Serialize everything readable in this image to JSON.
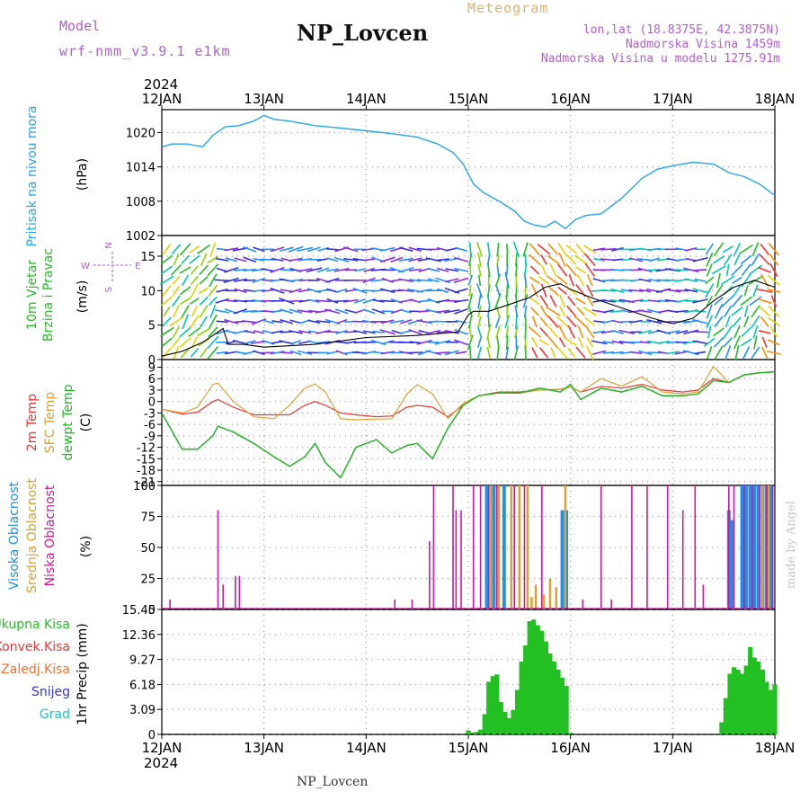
{
  "header": {
    "model_label": "Model",
    "model_name": "wrf-nmm_v3.9.1 e1km",
    "station": "NP_Lovcen",
    "meteogram": "Meteogram",
    "lonlat": "lon,lat (18.8375E, 42.3875N)",
    "altitude": "Nadmorska Visina 1459m",
    "model_altitude": "Nadmorska Visina u modelu 1275.91m"
  },
  "footer": {
    "station": "NP_Lovcen",
    "credit": "made by Angel"
  },
  "colors": {
    "pressure": "#22a6e8",
    "rain": "#22c022",
    "temp": "#ee3333",
    "sfc": "#e0a030",
    "dew": "#22b522",
    "high": "#1e90e8",
    "mid": "#e0a030",
    "low": "#cc1a9a"
  },
  "chart_data": [
    {
      "type": "line",
      "id": "pressure",
      "ylabel": "Pritisak na nivou mora",
      "unit": "(hPa)",
      "ylim": [
        1002,
        1024
      ],
      "yticks": [
        1002,
        1008,
        1014,
        1020
      ],
      "x_top_year": "2024",
      "x_bottom_year": "2024",
      "x_tick_labels": [
        "12JAN",
        "13JAN",
        "14JAN",
        "15JAN",
        "16JAN",
        "17JAN",
        "18JAN"
      ],
      "x": [
        0,
        0.1,
        0.25,
        0.4,
        0.5,
        0.62,
        0.75,
        0.9,
        1.0,
        1.1,
        1.25,
        1.5,
        1.75,
        2.0,
        2.25,
        2.5,
        2.7,
        2.85,
        2.95,
        3.05,
        3.15,
        3.3,
        3.45,
        3.55,
        3.65,
        3.75,
        3.85,
        3.95,
        4.05,
        4.15,
        4.3,
        4.5,
        4.7,
        4.85,
        5.0,
        5.2,
        5.4,
        5.55,
        5.7,
        5.85,
        6.0
      ],
      "values": [
        1017.5,
        1018,
        1018,
        1017.5,
        1019.5,
        1021,
        1021.2,
        1022,
        1023,
        1022.3,
        1022,
        1021.2,
        1020.8,
        1020.3,
        1019.8,
        1019.2,
        1018,
        1016.5,
        1014.5,
        1011,
        1009.5,
        1008,
        1006.3,
        1004.5,
        1003.8,
        1003.5,
        1004.5,
        1003.2,
        1004.8,
        1005.5,
        1005.8,
        1008.5,
        1012,
        1013.6,
        1014.2,
        1014.8,
        1014.5,
        1013,
        1012.3,
        1011,
        1009
      ]
    },
    {
      "type": "vector",
      "id": "wind",
      "ylabel_1": "10m Vjetar",
      "ylabel_2": "Brzina i Pravac",
      "unit": "(m/s)",
      "ylim": [
        0,
        18
      ],
      "yticks": [
        0,
        5,
        10,
        15
      ],
      "compass": {
        "w": "W",
        "e": "E",
        "n": "N",
        "s": "S"
      },
      "speed_x": [
        0,
        0.2,
        0.4,
        0.6,
        0.65,
        0.8,
        1.0,
        1.5,
        2.0,
        2.5,
        2.9,
        3.0,
        3.05,
        3.2,
        3.4,
        3.6,
        3.75,
        3.9,
        4.0,
        4.2,
        4.5,
        4.8,
        5.0,
        5.2,
        5.4,
        5.6,
        5.8,
        6.0
      ],
      "speed_values": [
        0.5,
        1.2,
        2.5,
        4.5,
        2.2,
        2.2,
        1.8,
        2.2,
        3.2,
        3.5,
        4.0,
        6.5,
        7.0,
        7.0,
        8.0,
        9.0,
        10.5,
        11.0,
        10.2,
        9.0,
        7.5,
        6.0,
        5.2,
        6.0,
        8.5,
        10.5,
        11.5,
        10.5
      ]
    },
    {
      "type": "line",
      "id": "temperature",
      "ylabel_1": "2m Temp",
      "ylabel_2": "SFC Temp",
      "ylabel_3": "dewpt Temp",
      "unit": "(C)",
      "ylim": [
        -22,
        11
      ],
      "yticks": [
        -21,
        -18,
        -15,
        -12,
        -9,
        -6,
        -3,
        0,
        3,
        6,
        9
      ],
      "x": [
        0,
        0.2,
        0.35,
        0.5,
        0.55,
        0.7,
        0.9,
        1.1,
        1.25,
        1.4,
        1.5,
        1.6,
        1.75,
        1.9,
        2.1,
        2.25,
        2.4,
        2.5,
        2.65,
        2.8,
        2.95,
        3.1,
        3.3,
        3.5,
        3.7,
        3.9,
        4.0,
        4.1,
        4.3,
        4.5,
        4.7,
        4.9,
        5.1,
        5.25,
        5.4,
        5.55,
        5.7,
        5.85,
        6.0
      ],
      "series": [
        {
          "name": "2m Temp",
          "color": "#ee3333",
          "values": [
            -2,
            -3.3,
            -2.8,
            0,
            0.5,
            -1.5,
            -3.5,
            -3.5,
            -3.5,
            -1,
            0,
            -1,
            -3,
            -3.5,
            -4,
            -3.8,
            -1.5,
            -1,
            -1.5,
            -4,
            -1,
            1.5,
            2.5,
            2.5,
            3,
            3.2,
            3.8,
            2.5,
            4,
            3.5,
            4.5,
            3,
            2.5,
            3,
            6,
            5,
            7,
            7.5,
            7.8
          ]
        },
        {
          "name": "SFC Temp",
          "color": "#e0a030",
          "values": [
            -2,
            -3,
            -1.5,
            4.5,
            4.8,
            0,
            -4,
            -4.5,
            -1,
            3.5,
            4.6,
            2.5,
            -4.5,
            -4.8,
            -4.6,
            -4.5,
            2,
            4.4,
            2,
            -4.5,
            -0.5,
            1.5,
            2.2,
            2.2,
            3,
            3.2,
            3.8,
            2.5,
            6,
            4,
            6.5,
            2.5,
            2,
            2.5,
            9.2,
            5,
            7,
            7.5,
            7.8
          ]
        },
        {
          "name": "dewpt Temp",
          "color": "#22b522",
          "values": [
            -3,
            -12.5,
            -12.5,
            -9,
            -6.5,
            -8,
            -11,
            -14.5,
            -17,
            -14.5,
            -11,
            -16,
            -20,
            -12,
            -10,
            -13.5,
            -11.5,
            -11,
            -15,
            -7,
            -1,
            1.5,
            2.3,
            2.2,
            3.5,
            2.5,
            4.5,
            0.5,
            3.5,
            2.5,
            4,
            1.5,
            1.5,
            2,
            5.5,
            5,
            7,
            7.5,
            7.8
          ]
        }
      ]
    },
    {
      "type": "bar",
      "id": "clouds",
      "ylabel_1": "Visoka Oblacnost",
      "ylabel_2": "Srednja Oblacnost",
      "ylabel_3": "Niska Oblacnost",
      "unit": "(%)",
      "ylim": [
        0,
        100
      ],
      "yticks": [
        0,
        25,
        50,
        75,
        100
      ],
      "low": {
        "name": "Niska Oblacnost",
        "x": [
          0.08,
          0.55,
          0.6,
          0.72,
          0.76,
          2.28,
          2.45,
          2.62,
          2.66,
          2.85,
          2.88,
          2.93,
          3.05,
          3.12,
          3.2,
          3.28,
          3.45,
          3.55,
          3.72,
          4.12,
          4.3,
          4.4,
          4.6,
          4.75,
          4.95,
          5.1,
          5.22,
          5.3,
          5.55,
          5.6,
          5.7,
          5.78,
          5.85,
          5.92,
          5.98
        ],
        "values": [
          8,
          80,
          20,
          27,
          27,
          8,
          8,
          55,
          100,
          100,
          80,
          80,
          100,
          100,
          100,
          100,
          100,
          100,
          100,
          8,
          100,
          8,
          100,
          100,
          100,
          80,
          100,
          20,
          100,
          100,
          100,
          100,
          100,
          100,
          100
        ]
      },
      "mid": {
        "name": "Srednja Oblacnost",
        "x": [
          3.22,
          3.3,
          3.42,
          3.5,
          3.58,
          3.62,
          3.66,
          3.74,
          3.8,
          3.86,
          3.95,
          5.88,
          5.94
        ],
        "values": [
          100,
          100,
          100,
          100,
          100,
          10,
          20,
          12,
          25,
          18,
          100,
          100,
          100
        ]
      },
      "high": {
        "name": "Visoka Oblacnost",
        "x": [
          3.18,
          3.25,
          3.35,
          3.92,
          3.96,
          5.55,
          5.58,
          5.68,
          5.72,
          5.76,
          5.8,
          5.84,
          5.88,
          5.92,
          5.96
        ],
        "values": [
          100,
          100,
          100,
          80,
          80,
          80,
          72,
          100,
          100,
          100,
          100,
          100,
          100,
          100,
          100
        ]
      }
    },
    {
      "type": "bar",
      "id": "precip",
      "ylabel": "1hr Precip",
      "unit": "(mm)",
      "ylim": [
        0,
        15.45
      ],
      "yticks": [
        0,
        3.09,
        6.18,
        9.27,
        12.36,
        15.45
      ],
      "legend": [
        "Ukupna Kisa",
        "Konvek.Kisa",
        "Zaledj.Kisa",
        "Snijeg",
        "Grad"
      ],
      "legend_colors": [
        "#22c022",
        "#ee3333",
        "#f07030",
        "#3333dd",
        "#22c0c0"
      ],
      "x": [
        3.0,
        3.04,
        3.08,
        3.12,
        3.16,
        3.2,
        3.24,
        3.28,
        3.32,
        3.36,
        3.4,
        3.44,
        3.48,
        3.52,
        3.56,
        3.6,
        3.64,
        3.68,
        3.72,
        3.76,
        3.8,
        3.84,
        3.88,
        3.92,
        3.96,
        4.0,
        5.48,
        5.52,
        5.56,
        5.6,
        5.64,
        5.68,
        5.72,
        5.76,
        5.8,
        5.84,
        5.88,
        5.92,
        5.96,
        6.0
      ],
      "values": [
        0.5,
        0.2,
        0.3,
        0.6,
        2.5,
        6.5,
        7.2,
        7.4,
        4,
        2.8,
        2,
        3,
        5.5,
        9,
        11,
        14,
        14.2,
        13.5,
        12.8,
        11.5,
        10,
        9,
        8,
        7,
        6,
        0.2,
        1.5,
        4.5,
        7.5,
        8.3,
        8,
        7.5,
        8.5,
        10.8,
        9.5,
        9,
        8,
        6.5,
        5.5,
        6.2
      ]
    }
  ]
}
